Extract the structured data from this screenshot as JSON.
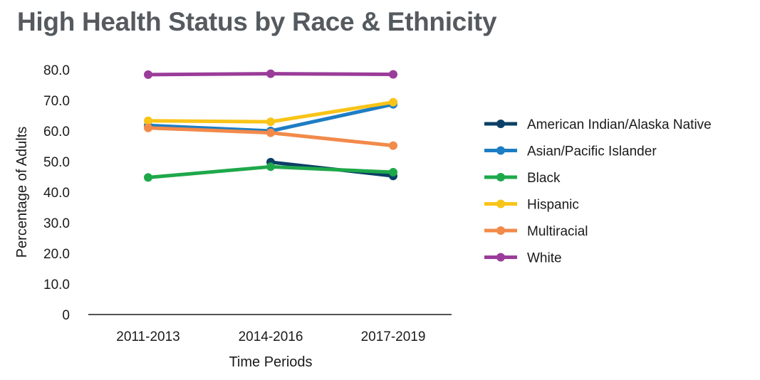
{
  "title": "High Health Status by Race & Ethnicity",
  "chart_data": {
    "type": "line",
    "title": "High Health Status by Race & Ethnicity",
    "xlabel": "Time Periods",
    "ylabel": "Percentage of Adults",
    "categories": [
      "2011-2013",
      "2014-2016",
      "2017-2019"
    ],
    "ylim": [
      0,
      80
    ],
    "yticks": [
      "0",
      "10.0",
      "20.0",
      "30.0",
      "40.0",
      "50.0",
      "60.0",
      "70.0",
      "80.0"
    ],
    "grid": false,
    "legend_position": "right",
    "series": [
      {
        "name": "American Indian/Alaska Native",
        "color": "#0b3f66",
        "values": [
          null,
          49.8,
          45.3
        ]
      },
      {
        "name": "Asian/Pacific Islander",
        "color": "#1d7dc4",
        "values": [
          61.8,
          60.0,
          68.7
        ]
      },
      {
        "name": "Black",
        "color": "#1ea84a",
        "values": [
          44.8,
          48.3,
          46.5
        ]
      },
      {
        "name": "Hispanic",
        "color": "#f9c418",
        "values": [
          63.3,
          63.0,
          69.4
        ]
      },
      {
        "name": "Multiracial",
        "color": "#f28a4a",
        "values": [
          61.0,
          59.4,
          55.2
        ]
      },
      {
        "name": "White",
        "color": "#9a3c99",
        "values": [
          78.4,
          78.7,
          78.5
        ]
      }
    ]
  }
}
